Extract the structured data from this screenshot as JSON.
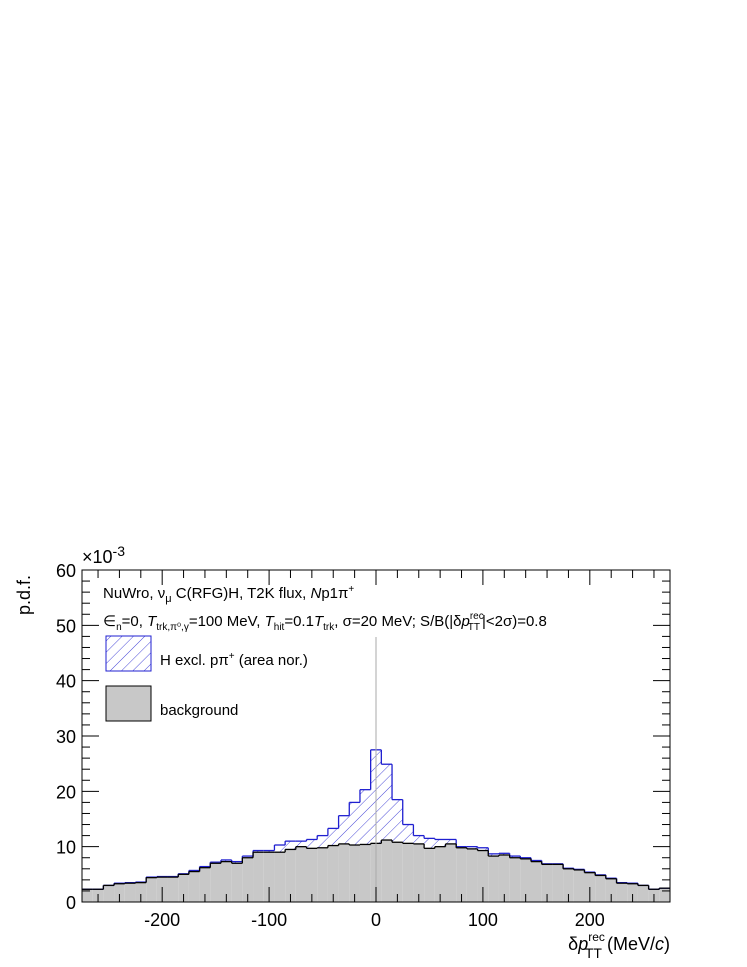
{
  "chart_data": {
    "type": "histogram",
    "ylabel": "p.d.f.",
    "xlabel": [
      "δ",
      "p",
      "rec",
      "TT",
      " (MeV/",
      "c",
      ")"
    ],
    "yexponent": [
      "×10",
      "-3"
    ],
    "annotations": [
      [
        "NuWro, ν",
        "μ",
        " C(RFG)H, T2K flux, ",
        "N",
        "p1π",
        "+"
      ],
      [
        "∈",
        "n",
        "=0, ",
        "T",
        "trk,π⁰,γ",
        "=100 MeV, ",
        "T",
        "hit",
        "=0.1",
        "T",
        "trk",
        ", σ=20 MeV; S/B(|δ",
        "p",
        "rec",
        "TT",
        "|<2σ)=0.8"
      ]
    ],
    "bins": [
      -275,
      -265,
      -255,
      -245,
      -235,
      -225,
      -215,
      -205,
      -195,
      -185,
      -175,
      -165,
      -155,
      -145,
      -135,
      -125,
      -115,
      -105,
      -95,
      -85,
      -75,
      -65,
      -55,
      -45,
      -35,
      -25,
      -15,
      -5,
      5,
      15,
      25,
      35,
      45,
      55,
      65,
      75,
      85,
      95,
      105,
      115,
      125,
      135,
      145,
      155,
      165,
      175,
      185,
      195,
      205,
      215,
      225,
      235,
      245,
      255,
      265,
      275
    ],
    "series": [
      {
        "name": "background",
        "color": "#c8c8c8",
        "values": [
          2.3,
          2.3,
          3.0,
          3.3,
          3.4,
          3.5,
          4.4,
          4.5,
          4.5,
          5.0,
          5.5,
          6.2,
          7.0,
          7.3,
          7.0,
          8.0,
          9.0,
          9.0,
          9.0,
          9.5,
          10.0,
          9.7,
          9.8,
          10.2,
          10.5,
          10.3,
          10.4,
          10.6,
          11.2,
          10.8,
          10.6,
          10.5,
          9.7,
          10.0,
          10.5,
          9.8,
          9.6,
          9.3,
          8.3,
          8.5,
          8.0,
          7.8,
          7.3,
          6.8,
          6.8,
          6.0,
          5.8,
          5.3,
          4.8,
          4.2,
          3.4,
          3.3,
          3.0,
          2.3,
          2.5
        ]
      },
      {
        "name": [
          "H excl. pπ",
          "+",
          " (area nor.)"
        ],
        "color": "#1f1fd0",
        "values": [
          0.0,
          0.0,
          0.0,
          0.1,
          0.1,
          0.1,
          0.1,
          0.1,
          0.1,
          0.1,
          0.2,
          0.2,
          0.2,
          0.3,
          0.3,
          0.3,
          0.3,
          0.3,
          1.3,
          1.5,
          1.0,
          1.6,
          2.2,
          3.1,
          5.1,
          7.7,
          9.9,
          16.9,
          13.7,
          7.7,
          3.4,
          1.5,
          1.8,
          1.3,
          0.8,
          0.2,
          0.4,
          0.5,
          0.4,
          0.3,
          0.3,
          0.2,
          0.2,
          0.1,
          0.1,
          0.1,
          0.1,
          0.1,
          0.1,
          0.1,
          0.1,
          0.1,
          0.0,
          0.0,
          0.0
        ]
      }
    ],
    "vline": 0,
    "xlim": [
      -275,
      275
    ],
    "xticks": [
      -200,
      -100,
      0,
      100,
      200
    ],
    "ylim": [
      0,
      60
    ],
    "yticks": [
      0,
      10,
      20,
      30,
      40,
      50,
      60
    ]
  }
}
